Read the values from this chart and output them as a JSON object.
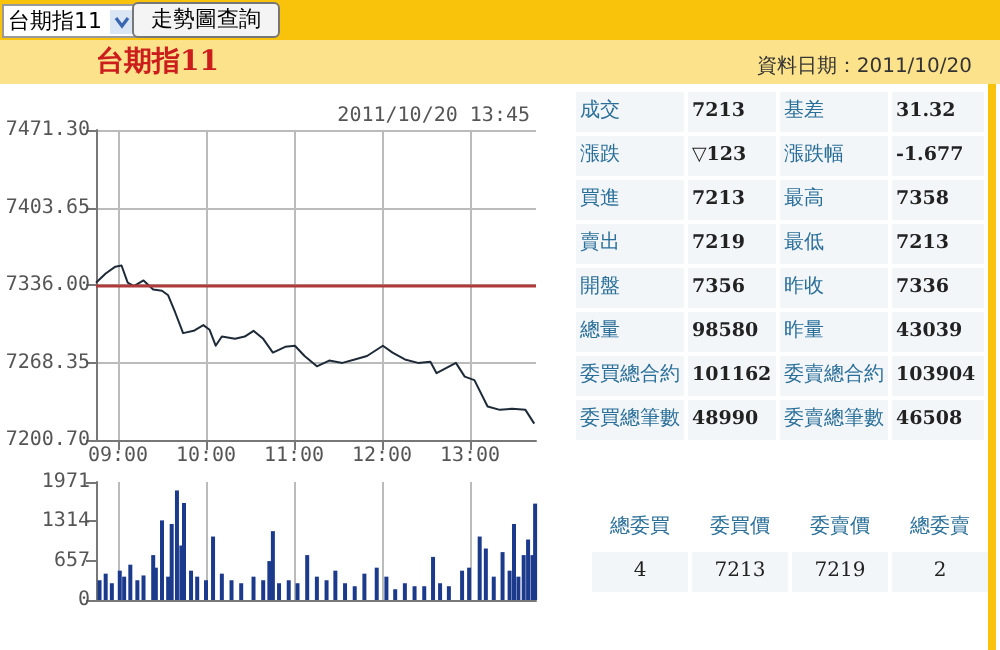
{
  "chart_data": [
    {
      "type": "line",
      "title": "台期指11",
      "subtitle": "2011/10/20 13:45",
      "annotations": [
        "台期指11",
        "走勢圖查詢",
        "資料日期：2011/10/20"
      ],
      "x": [
        8.75,
        8.86,
        8.97,
        9.04,
        9.11,
        9.18,
        9.29,
        9.4,
        9.5,
        9.57,
        9.65,
        9.74,
        9.86,
        9.97,
        10.04,
        10.11,
        10.18,
        10.33,
        10.44,
        10.54,
        10.65,
        10.76,
        10.9,
        11.01,
        11.12,
        11.26,
        11.4,
        11.55,
        11.69,
        11.83,
        12.01,
        12.12,
        12.26,
        12.41,
        12.55,
        12.62,
        12.84,
        12.94,
        13.05,
        13.2,
        13.34,
        13.48,
        13.63,
        13.73
      ],
      "series": [
        {
          "color": "#1e2a38",
          "values": [
            7338,
            7346,
            7352,
            7353,
            7338,
            7335,
            7340,
            7332,
            7331,
            7327,
            7312,
            7294,
            7296,
            7301,
            7297,
            7283,
            7291,
            7289,
            7291,
            7296,
            7289,
            7277,
            7282,
            7283,
            7274,
            7265,
            7270,
            7268,
            7271,
            7274,
            7283,
            7277,
            7271,
            7268,
            7269,
            7259,
            7268,
            7256,
            7253,
            7230,
            7227,
            7228,
            7227,
            7215
          ]
        }
      ],
      "xlim": [
        8.75,
        13.75
      ],
      "xticks": [
        {
          "value": 9,
          "label": "09:00"
        },
        {
          "value": 10,
          "label": "10:00"
        },
        {
          "value": 11,
          "label": "11:00"
        },
        {
          "value": 12,
          "label": "12:00"
        },
        {
          "value": 13,
          "label": "13:00"
        }
      ],
      "ylim": [
        7200.7,
        7471.3
      ],
      "yticks": [
        {
          "value": 7200.7,
          "label": "7200.70"
        },
        7268.35,
        {
          "value": 7336,
          "label": "7336.00"
        },
        7403.65,
        {
          "value": 7471.3,
          "label": "7471.30"
        }
      ],
      "ref_lines": [
        {
          "axis": "y",
          "value": 7336,
          "color": "#b03a3a"
        }
      ],
      "grid": true,
      "marker": "none",
      "line_style": "solid"
    },
    {
      "type": "bar",
      "x": [
        8.79,
        8.86,
        8.93,
        9.02,
        9.07,
        9.14,
        9.22,
        9.29,
        9.4,
        9.43,
        9.5,
        9.57,
        9.61,
        9.67,
        9.72,
        9.75,
        9.83,
        9.9,
        10.0,
        10.08,
        10.18,
        10.29,
        10.4,
        10.54,
        10.65,
        10.72,
        10.76,
        10.83,
        10.94,
        11.04,
        11.15,
        11.26,
        11.37,
        11.47,
        11.58,
        11.69,
        11.8,
        11.94,
        12.05,
        12.15,
        12.26,
        12.37,
        12.48,
        12.58,
        12.66,
        12.76,
        12.91,
        12.99,
        13.11,
        13.18,
        13.27,
        13.37,
        13.45,
        13.5,
        13.55,
        13.61,
        13.66,
        13.71,
        13.74
      ],
      "series": [
        {
          "color": "#1c3a8c",
          "values": [
            330,
            440,
            280,
            490,
            390,
            590,
            330,
            410,
            750,
            540,
            1330,
            390,
            1270,
            1830,
            910,
            1620,
            490,
            390,
            330,
            1060,
            440,
            330,
            280,
            390,
            330,
            650,
            1150,
            280,
            330,
            280,
            750,
            390,
            330,
            490,
            280,
            230,
            440,
            540,
            390,
            180,
            280,
            230,
            230,
            720,
            280,
            230,
            490,
            540,
            1060,
            860,
            390,
            800,
            490,
            1270,
            390,
            750,
            1010,
            750,
            1610
          ]
        }
      ],
      "xlim": [
        8.75,
        13.75
      ],
      "xticks": [
        9,
        10,
        11,
        12,
        13
      ],
      "tick_labels": "y",
      "ylim": [
        0,
        1971
      ],
      "yticks": [
        0,
        657,
        1314,
        1971
      ],
      "grid": "x"
    },
    {
      "type": "other",
      "annotations": [
        "成交",
        "7213",
        "基差",
        "31.32",
        "漲跌",
        "▽123",
        "漲跌幅",
        "-1.677",
        "買進",
        "7213",
        "最高",
        "7358",
        "賣出",
        "7219",
        "最低",
        "7213",
        "開盤",
        "7356",
        "昨收",
        "7336",
        "總量",
        "98580",
        "昨量",
        "43039",
        "委買總合約",
        "101162",
        "委賣總合約",
        "103904",
        "委買總筆數",
        "48990",
        "委賣總筆數",
        "46508"
      ]
    },
    {
      "type": "other",
      "annotations": [
        "總委買",
        "委買價",
        "委賣價",
        "總委賣",
        "4",
        "7213",
        "7219",
        "2"
      ]
    }
  ]
}
